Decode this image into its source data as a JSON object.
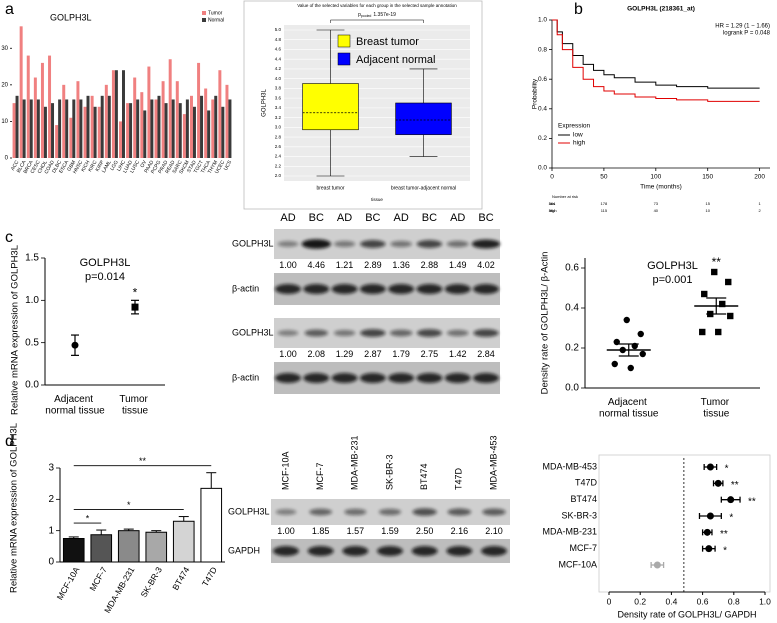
{
  "panel_labels": [
    "a",
    "b",
    "c",
    "d"
  ],
  "chart_data": [
    {
      "type": "bar",
      "title": "GOLPH3L",
      "categories": [
        "ACC",
        "BLCA",
        "BRCA",
        "CESC",
        "CHOL",
        "COAD",
        "DLBC",
        "ESCA",
        "GBM",
        "HNSC",
        "KICH",
        "KIRC",
        "KIRP",
        "LAML",
        "LGG",
        "LIHC",
        "LUAD",
        "LUSC",
        "OV",
        "PAAD",
        "PCPG",
        "PRAD",
        "READ",
        "SARC",
        "SKCM",
        "STAD",
        "TGCT",
        "THCA",
        "THYM",
        "UCEC",
        "UCS"
      ],
      "series": [
        {
          "name": "Tumor",
          "color": "#f08080",
          "values": [
            15,
            36,
            28,
            22,
            26,
            28,
            9,
            20,
            11,
            21,
            14,
            17,
            14,
            20,
            24,
            10,
            15,
            22,
            18,
            25,
            16,
            21,
            27,
            21,
            12,
            17,
            26,
            19,
            16,
            24,
            20
          ]
        },
        {
          "name": "Normal",
          "color": "#3a3a3a",
          "values": [
            17,
            16,
            16,
            16,
            14,
            15,
            16,
            16,
            16,
            16,
            17,
            14,
            17,
            17,
            24,
            24,
            15,
            16,
            13,
            16,
            17,
            15,
            16,
            15,
            16,
            14,
            17,
            13,
            17,
            14,
            16
          ]
        }
      ],
      "ylim": [
        0,
        38
      ],
      "yticks": [
        0,
        10,
        20,
        30
      ]
    },
    {
      "type": "box",
      "title": "Value of the selected variables for each group in the selected sample annotation",
      "p_symbol": "p",
      "p_subscript": "pooled",
      "p_value": 1.357e-19,
      "ylabel": "GOLPH3L",
      "xlabel": "tissue",
      "categories": [
        "breast tumor",
        "breast tumor-adjacent normal"
      ],
      "series": [
        {
          "name": "Breast tumor",
          "color": "#ffff00",
          "min": 2.0,
          "q1": 2.95,
          "median": 3.3,
          "q3": 3.9,
          "max": 5.0
        },
        {
          "name": "Adjacent normal",
          "color": "#0000ff",
          "min": 2.4,
          "q1": 2.85,
          "median": 3.15,
          "q3": 3.5,
          "max": 4.2
        }
      ],
      "ylim": [
        2.0,
        5.0
      ],
      "yticks": [
        {
          "value": 2,
          "label": "2.0"
        },
        2.2,
        2.4,
        2.6,
        2.8,
        {
          "value": 3,
          "label": "3.0"
        },
        3.2,
        3.4,
        3.6,
        3.8,
        {
          "value": 4,
          "label": "4.0"
        },
        4.2,
        4.4,
        4.6,
        4.8,
        {
          "value": 5,
          "label": "5.0"
        }
      ]
    },
    {
      "type": "km",
      "title": "GOLPH3L (218361_at)",
      "hr_text": "HR = 1.29 (1 − 1.66)",
      "logrank_text": "logrank P = 0.048",
      "xlabel": "Time (months)",
      "ylabel": "Probability",
      "legend_title": "Expression",
      "xlim": [
        0,
        210
      ],
      "ylim": [
        0,
        1
      ],
      "xticks": [
        0,
        50,
        100,
        150,
        200
      ],
      "yticks": [
        {
          "value": 0,
          "label": "0.0"
        },
        0.2,
        0.4,
        0.6,
        0.8,
        {
          "value": 1,
          "label": "1.0"
        }
      ],
      "series": [
        {
          "name": "low",
          "color": "#000000",
          "x": [
            0,
            5,
            10,
            20,
            30,
            40,
            50,
            60,
            80,
            100,
            120,
            150,
            200
          ],
          "values": [
            1,
            0.92,
            0.84,
            0.76,
            0.7,
            0.66,
            0.63,
            0.61,
            0.58,
            0.56,
            0.55,
            0.54,
            0.54
          ]
        },
        {
          "name": "high",
          "color": "#e00000",
          "x": [
            0,
            5,
            10,
            20,
            30,
            40,
            50,
            60,
            80,
            100,
            120,
            150,
            200
          ],
          "values": [
            1,
            0.9,
            0.8,
            0.68,
            0.6,
            0.55,
            0.52,
            0.5,
            0.48,
            0.47,
            0.46,
            0.45,
            0.45
          ]
        }
      ],
      "risk_table": {
        "title": "Number at risk",
        "rows": [
          {
            "name": "low",
            "values": [
              364,
              178,
              73,
              15,
              1
            ]
          },
          {
            "name": "high",
            "values": [
              364,
              115,
              40,
              10,
              2
            ]
          }
        ]
      }
    },
    {
      "type": "errorbar",
      "title": "GOLPH3L",
      "subtitle": "p=0.014",
      "ylabel": "Relative mRNA expression of GOLPH3L",
      "categories": [
        "Adjacent normal tissue",
        "Tumor tissue"
      ],
      "values": [
        0.47,
        0.92
      ],
      "errors": [
        0.12,
        0.08
      ],
      "markers": [
        "circle",
        "square"
      ],
      "annotations": [
        null,
        "*"
      ],
      "ylim": [
        0,
        1.5
      ],
      "yticks": [
        {
          "value": 0,
          "label": "0.0"
        },
        0.5,
        {
          "value": 1,
          "label": "1.0"
        },
        1.5
      ]
    },
    {
      "type": "blot",
      "lanes": [
        "AD",
        "BC",
        "AD",
        "BC",
        "AD",
        "BC",
        "AD",
        "BC"
      ],
      "blocks": [
        {
          "target": "GOLPH3L",
          "control": "β-actin",
          "values": [
            1.0,
            4.46,
            1.21,
            2.89,
            1.36,
            2.88,
            1.49,
            4.02
          ],
          "value_labels": [
            "1.00",
            "4.46",
            "1.21",
            "2.89",
            "1.36",
            "2.88",
            "1.49",
            "4.02"
          ]
        },
        {
          "target": "GOLPH3L",
          "control": "β-actin",
          "values": [
            1.0,
            2.08,
            1.29,
            2.87,
            1.79,
            2.75,
            1.42,
            2.84
          ],
          "value_labels": [
            "1.00",
            "2.08",
            "1.29",
            "2.87",
            "1.79",
            "2.75",
            "1.42",
            "2.84"
          ]
        }
      ]
    },
    {
      "type": "dotplot",
      "title": "GOLPH3L",
      "subtitle": "p=0.001",
      "ylabel": "Density rate of GOLPH3L/ β-Actin",
      "categories": [
        "Adjacent normal tissue",
        "Tumor tissue"
      ],
      "markers": [
        "circle",
        "square"
      ],
      "points": [
        [
          0.34,
          0.27,
          0.23,
          0.21,
          0.19,
          0.17,
          0.12,
          0.1
        ],
        [
          0.58,
          0.53,
          0.47,
          0.42,
          0.37,
          0.36,
          0.28,
          0.28
        ]
      ],
      "means": [
        0.19,
        0.41
      ],
      "errors": [
        0.03,
        0.04
      ],
      "annotations": [
        null,
        "**"
      ],
      "ylim": [
        0,
        0.65
      ],
      "yticks": [
        {
          "value": 0,
          "label": "0.0"
        },
        0.2,
        0.4,
        0.6
      ]
    },
    {
      "type": "bar_error",
      "ylabel": "Relative mRNA expression of GOLPH3L",
      "categories": [
        "MCF-10A",
        "MCF-7",
        "MDA-MB-231",
        "SK-BR-3",
        "BT474",
        "T47D"
      ],
      "values": [
        0.75,
        0.87,
        1.0,
        0.95,
        1.3,
        2.35
      ],
      "errors": [
        0.05,
        0.15,
        0.05,
        0.05,
        0.15,
        0.5
      ],
      "colors": [
        "#111111",
        "#555555",
        "#8a8a8a",
        "#a8a8a8",
        "#d4d4d4",
        "#ffffff"
      ],
      "annotations": [
        null,
        "*",
        null,
        null,
        "*",
        "**"
      ],
      "ylim": [
        0,
        3
      ],
      "yticks": [
        0,
        1,
        2,
        3
      ]
    },
    {
      "type": "blot",
      "lanes": [
        "MCF-10A",
        "MCF-7",
        "MDA-MB-231",
        "SK-BR-3",
        "BT474",
        "T47D",
        "MDA-MB-453"
      ],
      "blocks": [
        {
          "target": "GOLPH3L",
          "control": "GAPDH",
          "values": [
            1.0,
            1.85,
            1.57,
            1.59,
            2.5,
            2.16,
            2.1
          ],
          "value_labels": [
            "1.00",
            "1.85",
            "1.57",
            "1.59",
            "2.50",
            "2.16",
            "2.10"
          ]
        }
      ]
    },
    {
      "type": "forest",
      "xlabel": "Density rate of GOLPH3L/ GAPDH",
      "categories": [
        "MDA-MB-453",
        "T47D",
        "BT474",
        "SK-BR-3",
        "MDA-MB-231",
        "MCF-7",
        "MCF-10A"
      ],
      "values": [
        0.65,
        0.7,
        0.78,
        0.65,
        0.63,
        0.64,
        0.31
      ],
      "errors": [
        0.04,
        0.03,
        0.06,
        0.07,
        0.03,
        0.04,
        0.04
      ],
      "colors": [
        "#000000",
        "#000000",
        "#000000",
        "#000000",
        "#000000",
        "#000000",
        "#aaaaaa"
      ],
      "annotations": [
        "*",
        "**",
        "**",
        "*",
        "**",
        "*",
        null
      ],
      "reference_line": 0.48,
      "xlim": [
        0,
        1
      ],
      "xticks": [
        0,
        0.2,
        0.4,
        0.6,
        0.8,
        {
          "value": 1,
          "label": "1.0"
        }
      ]
    }
  ]
}
